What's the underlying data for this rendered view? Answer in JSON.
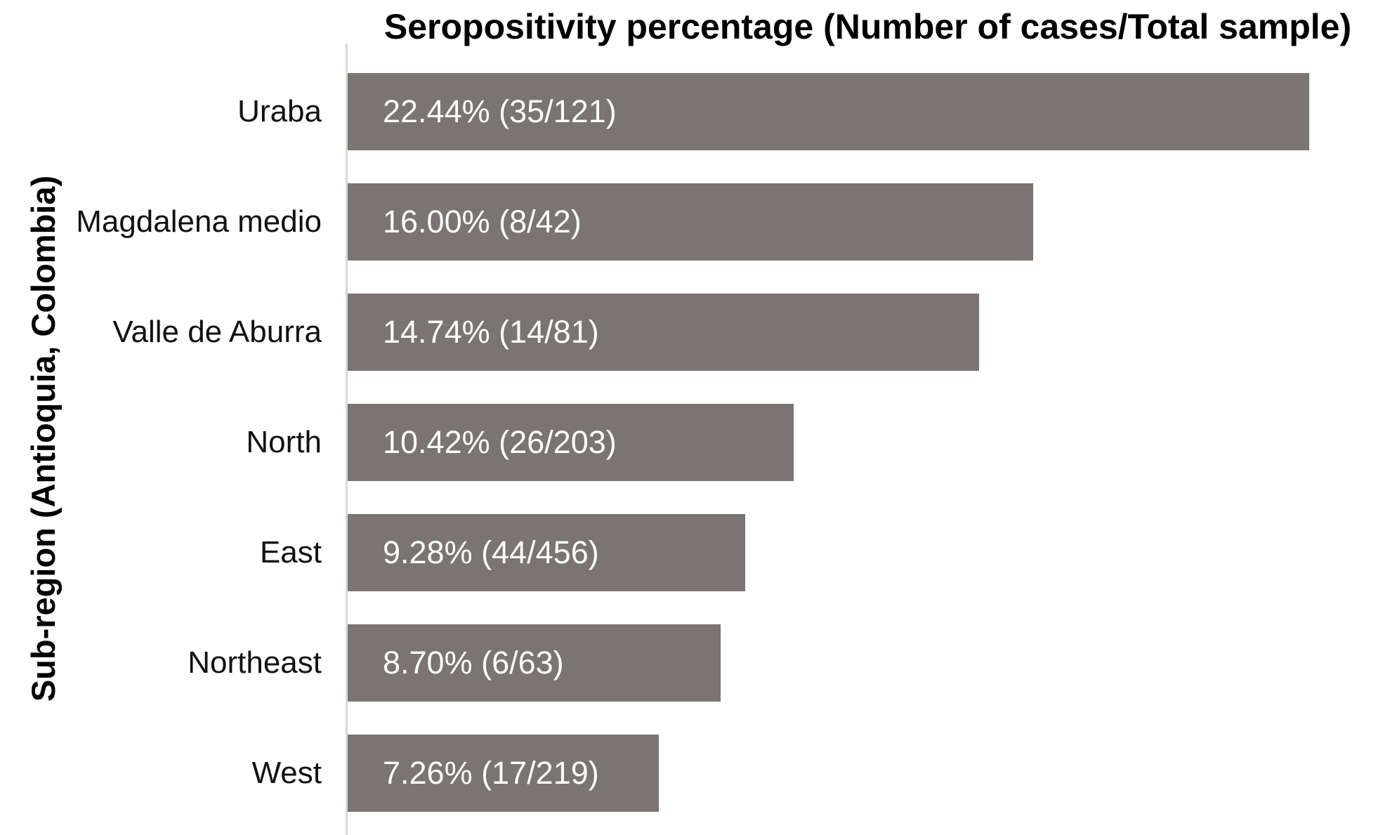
{
  "title": "Seropositivity percentage (Number of cases/Total sample)",
  "ylabel": "Sub-region (Antioquia, Colombia)",
  "colors": {
    "bar": "#7a7572",
    "bar_label_text": "#ffffff",
    "axis_line": "#d9d9d9",
    "text": "#000000"
  },
  "chart_data": {
    "type": "bar",
    "orientation": "horizontal",
    "title": "Seropositivity percentage (Number of cases/Total sample)",
    "ylabel": "Sub-region (Antioquia, Colombia)",
    "xlabel": "",
    "grid": false,
    "legend": null,
    "xlim": [
      0,
      24.3
    ],
    "categories": [
      "Uraba",
      "Magdalena medio",
      "Valle de Aburra",
      "North",
      "East",
      "Northeast",
      "West"
    ],
    "values": [
      22.44,
      16.0,
      14.74,
      10.42,
      9.28,
      8.7,
      7.26
    ],
    "cases": [
      35,
      8,
      14,
      26,
      44,
      6,
      17
    ],
    "totals": [
      121,
      42,
      81,
      203,
      456,
      63,
      219
    ],
    "bar_labels": [
      "22.44% (35/121)",
      "16.00% (8/42)",
      "14.74% (14/81)",
      "10.42% (26/203)",
      "9.28% (44/456)",
      "8.70% (6/63)",
      "7.26% (17/219)"
    ]
  }
}
